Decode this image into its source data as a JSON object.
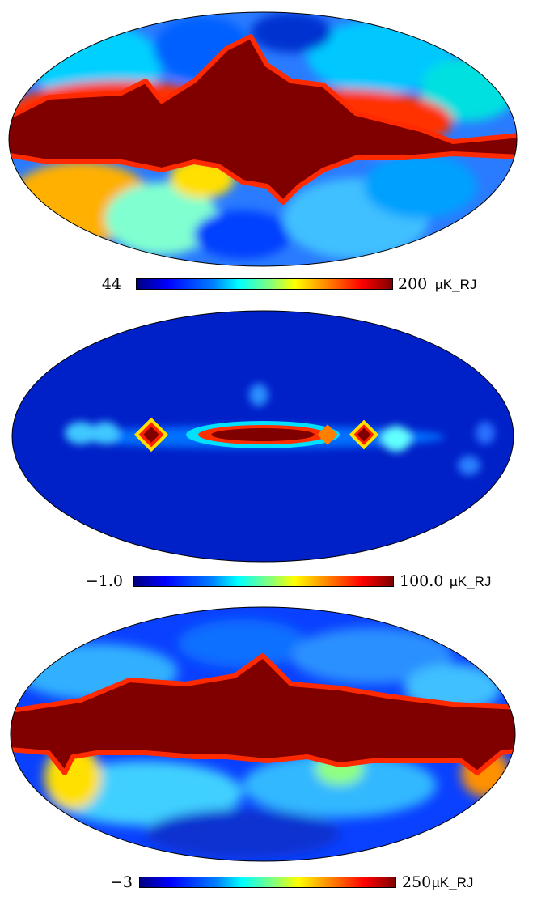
{
  "panels": [
    {
      "id": "map-1",
      "colorbar": {
        "min": "44",
        "max": "200",
        "unit": "µK_RJ"
      }
    },
    {
      "id": "map-2",
      "colorbar": {
        "min": "−1.0",
        "max": "100.0",
        "unit": "µK_RJ"
      }
    },
    {
      "id": "map-3",
      "colorbar": {
        "min": "−3",
        "max": "250",
        "unit": "µK_RJ"
      }
    }
  ],
  "colormap": [
    "#00007f",
    "#0000ff",
    "#0080ff",
    "#00ffff",
    "#7fff7f",
    "#ffff00",
    "#ff8000",
    "#ff0000",
    "#7f0000"
  ],
  "projection": "mollweide"
}
